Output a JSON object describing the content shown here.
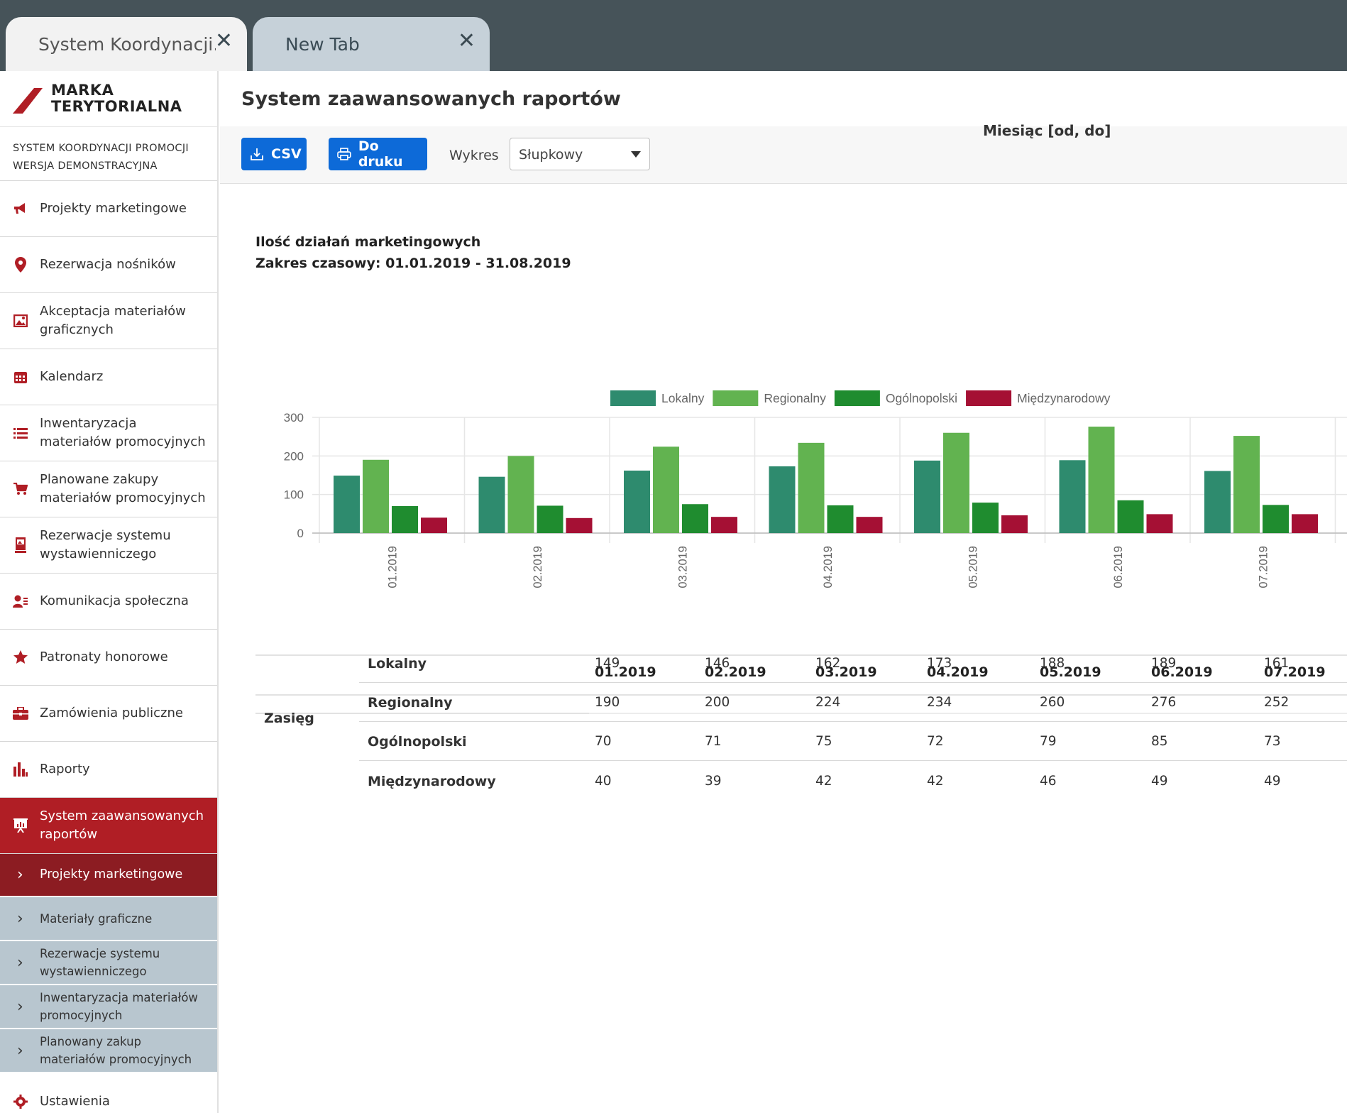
{
  "browser": {
    "tabs": [
      {
        "title": "System Koordynacji...",
        "active": true
      },
      {
        "title": "New Tab",
        "active": false
      }
    ]
  },
  "brand": {
    "logo_line1": "MARKA",
    "logo_line2": "TERYTORIALNA",
    "system_line1": "SYSTEM KOORDYNACJI PROMOCJI",
    "system_line2": "WERSJA DEMONSTRACYJNA",
    "accent_color": "#b01e25"
  },
  "sidebar": {
    "items": [
      {
        "label": "Projekty marketingowe",
        "icon": "megaphone-icon"
      },
      {
        "label": "Rezerwacja nośników",
        "icon": "map-pin-icon"
      },
      {
        "label": "Akceptacja materiałów graficznych",
        "icon": "image-icon"
      },
      {
        "label": "Kalendarz",
        "icon": "calendar-icon"
      },
      {
        "label": "Inwentaryzacja materiałów promocyjnych",
        "icon": "list-icon"
      },
      {
        "label": "Planowane zakupy materiałów promocyjnych",
        "icon": "cart-icon"
      },
      {
        "label": "Rezerwacje systemu wystawienniczego",
        "icon": "banner-stand-icon"
      },
      {
        "label": "Komunikacja społeczna",
        "icon": "user-card-icon"
      },
      {
        "label": "Patronaty honorowe",
        "icon": "star-icon"
      },
      {
        "label": "Zamówienia publiczne",
        "icon": "briefcase-icon"
      },
      {
        "label": "Raporty",
        "icon": "bar-chart-icon"
      },
      {
        "label": "System zaawansowanych raportów",
        "icon": "presentation-chart-icon",
        "active": true
      }
    ],
    "sub_items": [
      {
        "label": "Projekty marketingowe",
        "active": true
      },
      {
        "label": "Materiały graficzne"
      },
      {
        "label": "Rezerwacje systemu wystawienniczego"
      },
      {
        "label": "Inwentaryzacja materiałów promocyjnych"
      },
      {
        "label": "Planowany zakup materiałów promocyjnych"
      }
    ],
    "settings": {
      "label": "Ustawienia",
      "icon": "gear-icon"
    }
  },
  "page": {
    "title": "System zaawansowanych raportów",
    "toolbar": {
      "csv_label": "CSV",
      "print_label": "Do druku",
      "chart_type_label": "Wykres",
      "chart_type_value": "Słupkowy"
    }
  },
  "chart_data": {
    "type": "bar",
    "title_line1": "Ilość działań marketingowych",
    "title_line2": "Zakres czasowy: 01.01.2019 - 31.08.2019",
    "categories": [
      "01.2019",
      "02.2019",
      "03.2019",
      "04.2019",
      "05.2019",
      "06.2019",
      "07.2019"
    ],
    "series": [
      {
        "name": "Lokalny",
        "color": "#2e8b6e",
        "values": [
          149,
          146,
          162,
          173,
          188,
          189,
          161
        ]
      },
      {
        "name": "Regionalny",
        "color": "#62b350",
        "values": [
          190,
          200,
          224,
          234,
          260,
          276,
          252
        ]
      },
      {
        "name": "Ogólnopolski",
        "color": "#1f8c2f",
        "values": [
          70,
          71,
          75,
          72,
          79,
          85,
          73
        ]
      },
      {
        "name": "Międzynarodowy",
        "color": "#a51034",
        "values": [
          40,
          39,
          42,
          42,
          46,
          49,
          49
        ]
      }
    ],
    "yticks": [
      0,
      100,
      200,
      300
    ],
    "ylim": [
      0,
      300
    ],
    "legend": "top",
    "grid": true
  },
  "table": {
    "caption": "Miesiąc [od, do]",
    "group_label": "Zasięg",
    "columns": [
      "01.2019",
      "02.2019",
      "03.2019",
      "04.2019",
      "05.2019",
      "06.2019",
      "07.2019"
    ],
    "rows": [
      {
        "label": "Lokalny",
        "values": [
          "149",
          "146",
          "162",
          "173",
          "188",
          "189",
          "161"
        ]
      },
      {
        "label": "Regionalny",
        "values": [
          "190",
          "200",
          "224",
          "234",
          "260",
          "276",
          "252"
        ]
      },
      {
        "label": "Ogólnopolski",
        "values": [
          "70",
          "71",
          "75",
          "72",
          "79",
          "85",
          "73"
        ]
      },
      {
        "label": "Międzynarodowy",
        "values": [
          "40",
          "39",
          "42",
          "42",
          "46",
          "49",
          "49"
        ]
      }
    ]
  }
}
